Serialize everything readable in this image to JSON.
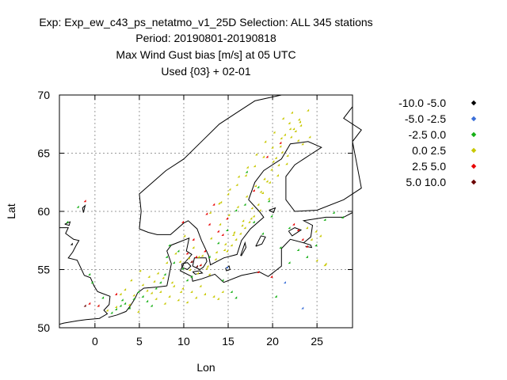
{
  "header": {
    "line1": "Exp: Exp_ew_c43_ps_netatmo_v1_25D   Selection: ALL    345 stations",
    "line2": "Period: 20190801-20190818",
    "line3": "Max Wind Gust bias [m/s] at  05 UTC",
    "line4": "Used {03} + 02-01"
  },
  "chart_data": {
    "type": "scatter",
    "title": "Max Wind Gust bias [m/s] at  05 UTC",
    "xlabel": "Lon",
    "ylabel": "Lat",
    "xlim": [
      -4,
      29
    ],
    "ylim": [
      50,
      70
    ],
    "xticks": [
      0,
      5,
      10,
      15,
      20,
      25
    ],
    "yticks": [
      50,
      55,
      60,
      65,
      70
    ],
    "grid": true,
    "legend_position": "right",
    "colors": {
      "-10.0 -5.0": "#000000",
      "-5.0 -2.5": "#3a6fd8",
      "-2.5 0.0": "#16b016",
      "0.0 2.5": "#c8c800",
      "2.5 5.0": "#e80000",
      "5.0 10.0": "#6a0000"
    },
    "series": [
      {
        "name": "-10.0 -5.0",
        "x": [
          -2.5
        ],
        "y": [
          57.1
        ]
      },
      {
        "name": "-5.0 -2.5",
        "x": [
          21.5,
          23.5,
          15.0
        ],
        "y": [
          53.8,
          51.6,
          55.1
        ]
      },
      {
        "name": "-2.5 0.0",
        "x": [
          -3.0,
          -1.8,
          -0.5,
          -0.2,
          0.5,
          1.0,
          2.0,
          2.5,
          3.0,
          3.2,
          3.5,
          4.0,
          4.5,
          5.0,
          5.5,
          6.0,
          6.5,
          7.0,
          7.5,
          8.0,
          8.2,
          8.5,
          9.0,
          9.5,
          10.0,
          10.5,
          11.0,
          12.0,
          13.0,
          14.0,
          15.0,
          16.0,
          17.0,
          18.0,
          19.0,
          20.0,
          21.0,
          22.0,
          23.0,
          24.0,
          25.0,
          26.0,
          27.0,
          28.0,
          18.5,
          17.2,
          20.5,
          19.7,
          22.0,
          14.5,
          15.5,
          16.0
        ],
        "y": [
          59.0,
          60.3,
          54.5,
          53.8,
          51.8,
          52.5,
          51.2,
          51.5,
          51.8,
          52.3,
          52.0,
          51.6,
          52.4,
          53.0,
          52.6,
          52.2,
          51.8,
          53.3,
          53.8,
          54.5,
          56.0,
          57.0,
          55.5,
          56.5,
          55.0,
          54.0,
          54.3,
          55.3,
          56.0,
          57.2,
          58.3,
          60.0,
          60.5,
          59.0,
          58.0,
          59.5,
          56.8,
          55.5,
          56.6,
          56.0,
          57.0,
          59.2,
          59.8,
          59.4,
          62.0,
          63.3,
          52.6,
          60.8,
          58.5,
          54.0,
          53.0,
          52.5
        ]
      },
      {
        "name": "0.0 2.5",
        "x": [
          1.5,
          2.5,
          3.0,
          3.5,
          4.0,
          4.5,
          5.0,
          5.5,
          6.0,
          6.5,
          7.0,
          7.5,
          8.0,
          8.5,
          9.0,
          9.5,
          10.0,
          10.5,
          11.0,
          11.5,
          12.0,
          12.5,
          13.0,
          13.5,
          14.0,
          14.5,
          15.0,
          15.5,
          16.0,
          16.5,
          17.0,
          17.5,
          18.0,
          18.5,
          19.0,
          19.5,
          20.0,
          20.5,
          21.0,
          21.5,
          22.0,
          22.5,
          23.0,
          23.5,
          24.0,
          24.5,
          25.0,
          25.5,
          26.0,
          4.2,
          5.2,
          6.2,
          7.2,
          8.2,
          9.2,
          10.2,
          11.2,
          12.2,
          13.2,
          14.2,
          15.2,
          16.2,
          17.2,
          18.2,
          19.2,
          20.2,
          21.2,
          22.2,
          23.2,
          9.7,
          10.7,
          11.7,
          12.7,
          13.7,
          14.7,
          15.7,
          16.7,
          17.7,
          18.7,
          19.7,
          20.7,
          21.7,
          22.7,
          6.8,
          7.8,
          8.8,
          9.8,
          10.8,
          11.8,
          12.8,
          13.8,
          14.8,
          15.8,
          16.8,
          17.8,
          18.8,
          19.8,
          20.8,
          21.8,
          14.3,
          15.3,
          16.3,
          17.3,
          18.3,
          19.3,
          20.3,
          21.3,
          22.3,
          23.3,
          24.3,
          13.1,
          14.1,
          15.1,
          16.1,
          17.1,
          18.1,
          19.1,
          20.1,
          21.1,
          22.1,
          23.1,
          24.1,
          25.1,
          26.1
        ],
        "y": [
          51.4,
          51.7,
          52.8,
          53.2,
          51.9,
          52.7,
          51.3,
          53.6,
          53.1,
          52.9,
          52.4,
          53.0,
          52.0,
          52.6,
          53.5,
          52.3,
          53.3,
          52.1,
          53.0,
          52.5,
          53.5,
          52.8,
          54.5,
          52.6,
          52.4,
          53.0,
          56.5,
          57.0,
          57.5,
          58.0,
          58.5,
          59.0,
          59.5,
          60.5,
          61.5,
          62.5,
          63.5,
          64.5,
          65.5,
          66.5,
          67.5,
          67.0,
          66.0,
          65.7,
          58.5,
          57.5,
          58.2,
          57.8,
          55.3,
          54.0,
          54.8,
          54.3,
          54.6,
          55.5,
          56.3,
          57.8,
          56.8,
          56.1,
          57.6,
          58.8,
          59.6,
          60.3,
          61.2,
          62.1,
          62.7,
          64.2,
          65.0,
          66.3,
          67.6,
          55.6,
          55.9,
          54.6,
          55.0,
          55.8,
          56.6,
          57.9,
          58.7,
          59.3,
          60.0,
          61.0,
          63.0,
          64.0,
          66.8,
          53.9,
          54.2,
          53.8,
          53.0,
          54.9,
          56.0,
          55.2,
          56.4,
          57.1,
          58.1,
          59.1,
          60.2,
          61.6,
          62.4,
          63.9,
          64.7,
          60.7,
          61.8,
          62.9,
          63.7,
          64.8,
          65.9,
          66.7,
          67.9,
          68.4,
          67.3,
          66.3,
          59.8,
          60.6,
          61.4,
          62.2,
          63.0,
          63.8,
          64.6,
          65.4,
          66.2,
          67.0,
          67.8,
          68.6,
          55.7,
          55.4
        ]
      },
      {
        "name": "2.5 5.0",
        "x": [
          -1.0,
          -0.5,
          0.5,
          2.5,
          10.5,
          11.0,
          11.5,
          12.0,
          12.5,
          13.0,
          13.5,
          14.0,
          14.5,
          15.0,
          18.5,
          19.5,
          21.0,
          22.5,
          23.0,
          23.5,
          24.0,
          20.0,
          10.0,
          11.2,
          12.7,
          18.0
        ],
        "y": [
          60.8,
          52.0,
          51.8,
          52.8,
          56.3,
          55.6,
          56.0,
          55.3,
          56.5,
          58.8,
          60.5,
          58.2,
          57.9,
          59.3,
          54.7,
          64.6,
          65.8,
          58.8,
          58.3,
          57.5,
          56.9,
          54.3,
          59.0,
          57.5,
          59.7,
          61.7
        ]
      },
      {
        "name": "5.0 10.0",
        "x": [
          -1.0,
          11.0,
          11.6
        ],
        "y": [
          51.8,
          55.6,
          55.2
        ]
      }
    ]
  }
}
